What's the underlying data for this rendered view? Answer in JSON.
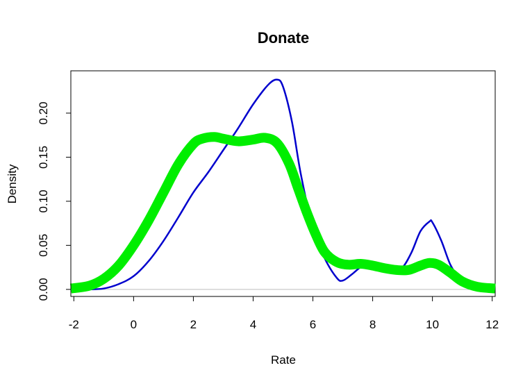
{
  "chart_data": {
    "type": "line",
    "title": "Donate",
    "xlabel": "Rate",
    "ylabel": "Density",
    "xlim": [
      -2.1,
      12.1
    ],
    "ylim": [
      -0.008,
      0.248
    ],
    "x_ticks": [
      "-2",
      "0",
      "2",
      "4",
      "6",
      "8",
      "10",
      "12"
    ],
    "y_ticks": [
      "0.00",
      "0.05",
      "0.10",
      "0.15",
      "0.20"
    ],
    "baseline": 0,
    "grid": false,
    "legend": "none",
    "series": [
      {
        "color": "#0000cd",
        "x": [
          -2.1,
          -1.5,
          -1.0,
          -0.5,
          0.0,
          0.5,
          1.0,
          1.5,
          2.0,
          2.5,
          3.0,
          3.5,
          4.0,
          4.5,
          4.8,
          5.0,
          5.3,
          5.6,
          6.0,
          6.4,
          6.8,
          7.0,
          7.3,
          7.7,
          8.0,
          8.3,
          8.7,
          9.0,
          9.3,
          9.6,
          9.9,
          10.0,
          10.3,
          10.6,
          10.9,
          11.2,
          11.5,
          12.1
        ],
        "y": [
          0.0,
          0.0,
          0.001,
          0.006,
          0.015,
          0.032,
          0.055,
          0.082,
          0.11,
          0.133,
          0.158,
          0.183,
          0.21,
          0.232,
          0.238,
          0.23,
          0.19,
          0.13,
          0.07,
          0.035,
          0.013,
          0.01,
          0.017,
          0.028,
          0.031,
          0.028,
          0.022,
          0.025,
          0.042,
          0.066,
          0.077,
          0.076,
          0.055,
          0.028,
          0.013,
          0.005,
          0.002,
          0.0
        ]
      },
      {
        "color": "#00ee00",
        "x": [
          -2.1,
          -1.5,
          -1.0,
          -0.5,
          0.0,
          0.5,
          1.0,
          1.5,
          2.0,
          2.3,
          2.7,
          3.0,
          3.5,
          4.0,
          4.4,
          4.8,
          5.2,
          5.5,
          5.8,
          6.1,
          6.4,
          6.8,
          7.2,
          7.6,
          8.0,
          8.4,
          8.8,
          9.2,
          9.6,
          9.9,
          10.2,
          10.6,
          11.0,
          11.5,
          12.1
        ],
        "y": [
          0.001,
          0.004,
          0.012,
          0.027,
          0.05,
          0.078,
          0.11,
          0.142,
          0.165,
          0.171,
          0.173,
          0.171,
          0.168,
          0.17,
          0.172,
          0.166,
          0.143,
          0.115,
          0.087,
          0.062,
          0.042,
          0.031,
          0.028,
          0.029,
          0.027,
          0.024,
          0.022,
          0.022,
          0.027,
          0.03,
          0.028,
          0.019,
          0.009,
          0.003,
          0.001
        ]
      }
    ]
  }
}
